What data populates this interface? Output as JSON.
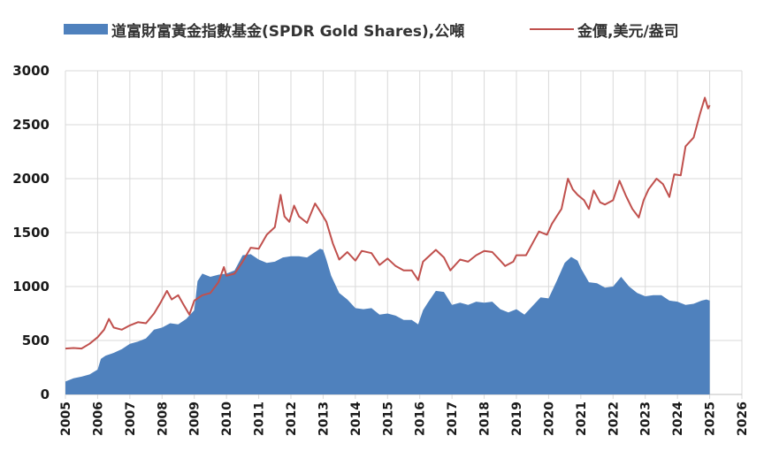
{
  "chart_data": {
    "type": "area+line",
    "title": "",
    "legend": {
      "placement": "top",
      "entries": [
        "道富財富黃金指數基金(SPDR Gold Shares),公噸",
        "金價,美元/盎司"
      ]
    },
    "xlim": [
      2005,
      2026
    ],
    "ylim": [
      0,
      3000
    ],
    "x_ticks": [
      "2005",
      "2006",
      "2007",
      "2008",
      "2009",
      "2010",
      "2011",
      "2012",
      "2013",
      "2014",
      "2015",
      "2016",
      "2017",
      "2018",
      "2019",
      "2020",
      "2021",
      "2022",
      "2023",
      "2024",
      "2025",
      "2026"
    ],
    "y_ticks": [
      "0",
      "500",
      "1000",
      "1500",
      "2000",
      "2500",
      "3000"
    ],
    "grid": true,
    "series": [
      {
        "name": "道富財富黃金指數基金(SPDR Gold Shares),公噸",
        "type": "area",
        "color": "#4f81bd",
        "points": [
          [
            2005.0,
            120
          ],
          [
            2005.25,
            150
          ],
          [
            2005.5,
            165
          ],
          [
            2005.75,
            185
          ],
          [
            2006.0,
            230
          ],
          [
            2006.1,
            330
          ],
          [
            2006.25,
            360
          ],
          [
            2006.5,
            385
          ],
          [
            2006.75,
            420
          ],
          [
            2007.0,
            470
          ],
          [
            2007.25,
            490
          ],
          [
            2007.5,
            520
          ],
          [
            2007.75,
            600
          ],
          [
            2008.0,
            620
          ],
          [
            2008.25,
            660
          ],
          [
            2008.5,
            650
          ],
          [
            2008.75,
            700
          ],
          [
            2009.0,
            780
          ],
          [
            2009.1,
            1050
          ],
          [
            2009.25,
            1120
          ],
          [
            2009.5,
            1090
          ],
          [
            2009.75,
            1110
          ],
          [
            2010.0,
            1120
          ],
          [
            2010.25,
            1150
          ],
          [
            2010.5,
            1290
          ],
          [
            2010.75,
            1300
          ],
          [
            2011.0,
            1250
          ],
          [
            2011.25,
            1220
          ],
          [
            2011.5,
            1230
          ],
          [
            2011.75,
            1270
          ],
          [
            2012.0,
            1280
          ],
          [
            2012.25,
            1280
          ],
          [
            2012.5,
            1270
          ],
          [
            2012.75,
            1320
          ],
          [
            2012.9,
            1350
          ],
          [
            2013.0,
            1340
          ],
          [
            2013.1,
            1250
          ],
          [
            2013.25,
            1100
          ],
          [
            2013.5,
            940
          ],
          [
            2013.75,
            880
          ],
          [
            2014.0,
            800
          ],
          [
            2014.25,
            790
          ],
          [
            2014.5,
            800
          ],
          [
            2014.75,
            740
          ],
          [
            2015.0,
            750
          ],
          [
            2015.25,
            730
          ],
          [
            2015.5,
            690
          ],
          [
            2015.75,
            690
          ],
          [
            2015.95,
            650
          ],
          [
            2016.1,
            780
          ],
          [
            2016.25,
            850
          ],
          [
            2016.5,
            960
          ],
          [
            2016.75,
            950
          ],
          [
            2017.0,
            830
          ],
          [
            2017.25,
            850
          ],
          [
            2017.5,
            830
          ],
          [
            2017.75,
            860
          ],
          [
            2018.0,
            850
          ],
          [
            2018.25,
            860
          ],
          [
            2018.5,
            790
          ],
          [
            2018.75,
            760
          ],
          [
            2019.0,
            790
          ],
          [
            2019.25,
            740
          ],
          [
            2019.5,
            820
          ],
          [
            2019.75,
            900
          ],
          [
            2020.0,
            890
          ],
          [
            2020.25,
            1050
          ],
          [
            2020.5,
            1220
          ],
          [
            2020.7,
            1275
          ],
          [
            2020.9,
            1240
          ],
          [
            2021.0,
            1170
          ],
          [
            2021.25,
            1040
          ],
          [
            2021.5,
            1030
          ],
          [
            2021.75,
            990
          ],
          [
            2022.0,
            1000
          ],
          [
            2022.25,
            1090
          ],
          [
            2022.5,
            1000
          ],
          [
            2022.75,
            940
          ],
          [
            2023.0,
            910
          ],
          [
            2023.25,
            920
          ],
          [
            2023.5,
            920
          ],
          [
            2023.75,
            870
          ],
          [
            2024.0,
            860
          ],
          [
            2024.25,
            830
          ],
          [
            2024.5,
            840
          ],
          [
            2024.75,
            870
          ],
          [
            2024.9,
            880
          ],
          [
            2025.0,
            870
          ]
        ]
      },
      {
        "name": "金價,美元/盎司",
        "type": "line",
        "color": "#c0504d",
        "points": [
          [
            2005.0,
            425
          ],
          [
            2005.25,
            430
          ],
          [
            2005.5,
            425
          ],
          [
            2005.75,
            470
          ],
          [
            2006.0,
            530
          ],
          [
            2006.2,
            600
          ],
          [
            2006.35,
            700
          ],
          [
            2006.5,
            620
          ],
          [
            2006.75,
            600
          ],
          [
            2007.0,
            640
          ],
          [
            2007.25,
            670
          ],
          [
            2007.5,
            660
          ],
          [
            2007.75,
            750
          ],
          [
            2007.95,
            850
          ],
          [
            2008.15,
            960
          ],
          [
            2008.3,
            880
          ],
          [
            2008.5,
            920
          ],
          [
            2008.65,
            840
          ],
          [
            2008.85,
            740
          ],
          [
            2009.0,
            870
          ],
          [
            2009.25,
            920
          ],
          [
            2009.5,
            940
          ],
          [
            2009.75,
            1040
          ],
          [
            2009.92,
            1180
          ],
          [
            2010.0,
            1100
          ],
          [
            2010.25,
            1120
          ],
          [
            2010.5,
            1230
          ],
          [
            2010.75,
            1360
          ],
          [
            2011.0,
            1350
          ],
          [
            2011.25,
            1480
          ],
          [
            2011.5,
            1550
          ],
          [
            2011.68,
            1850
          ],
          [
            2011.8,
            1650
          ],
          [
            2011.95,
            1600
          ],
          [
            2012.1,
            1750
          ],
          [
            2012.25,
            1650
          ],
          [
            2012.5,
            1590
          ],
          [
            2012.75,
            1770
          ],
          [
            2012.9,
            1700
          ],
          [
            2013.1,
            1600
          ],
          [
            2013.3,
            1400
          ],
          [
            2013.5,
            1250
          ],
          [
            2013.75,
            1320
          ],
          [
            2014.0,
            1240
          ],
          [
            2014.2,
            1330
          ],
          [
            2014.5,
            1310
          ],
          [
            2014.75,
            1200
          ],
          [
            2015.0,
            1260
          ],
          [
            2015.25,
            1190
          ],
          [
            2015.5,
            1150
          ],
          [
            2015.75,
            1150
          ],
          [
            2015.95,
            1060
          ],
          [
            2016.1,
            1230
          ],
          [
            2016.5,
            1340
          ],
          [
            2016.75,
            1270
          ],
          [
            2016.95,
            1150
          ],
          [
            2017.25,
            1250
          ],
          [
            2017.5,
            1230
          ],
          [
            2017.75,
            1290
          ],
          [
            2018.0,
            1330
          ],
          [
            2018.25,
            1320
          ],
          [
            2018.5,
            1240
          ],
          [
            2018.65,
            1190
          ],
          [
            2018.9,
            1230
          ],
          [
            2019.0,
            1290
          ],
          [
            2019.3,
            1290
          ],
          [
            2019.5,
            1400
          ],
          [
            2019.7,
            1510
          ],
          [
            2019.95,
            1480
          ],
          [
            2020.1,
            1580
          ],
          [
            2020.25,
            1650
          ],
          [
            2020.4,
            1720
          ],
          [
            2020.6,
            2000
          ],
          [
            2020.75,
            1900
          ],
          [
            2020.9,
            1850
          ],
          [
            2021.1,
            1800
          ],
          [
            2021.25,
            1720
          ],
          [
            2021.4,
            1890
          ],
          [
            2021.6,
            1780
          ],
          [
            2021.75,
            1760
          ],
          [
            2022.0,
            1800
          ],
          [
            2022.2,
            1980
          ],
          [
            2022.4,
            1840
          ],
          [
            2022.6,
            1720
          ],
          [
            2022.8,
            1640
          ],
          [
            2022.95,
            1800
          ],
          [
            2023.1,
            1900
          ],
          [
            2023.35,
            2000
          ],
          [
            2023.55,
            1950
          ],
          [
            2023.75,
            1830
          ],
          [
            2023.9,
            2040
          ],
          [
            2024.1,
            2030
          ],
          [
            2024.25,
            2300
          ],
          [
            2024.5,
            2380
          ],
          [
            2024.7,
            2600
          ],
          [
            2024.85,
            2750
          ],
          [
            2024.95,
            2650
          ],
          [
            2025.0,
            2680
          ]
        ]
      }
    ]
  }
}
